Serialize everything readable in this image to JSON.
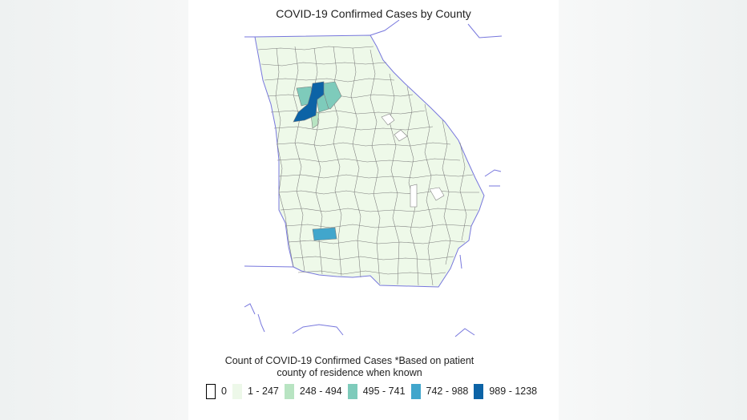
{
  "title": "COVID-19 Confirmed Cases by County",
  "legend": {
    "title_line1": "Count of COVID-19 Confirmed Cases *Based on patient",
    "title_line2": "county of residence when known",
    "items": [
      {
        "label": "0",
        "color": "#ffffff"
      },
      {
        "label": "1 - 247",
        "color": "#edf8e9"
      },
      {
        "label": "248 - 494",
        "color": "#b8e4c2"
      },
      {
        "label": "495 - 741",
        "color": "#7ecbbb"
      },
      {
        "label": "742 - 988",
        "color": "#41a6cc"
      },
      {
        "label": "989 - 1238",
        "color": "#0c63a6"
      }
    ]
  },
  "colors": {
    "state_fill": "#eef9e9",
    "county_border": "#7a7a7a",
    "state_border": "#7777dd"
  }
}
